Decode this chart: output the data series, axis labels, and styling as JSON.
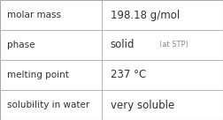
{
  "rows": [
    {
      "label": "molar mass",
      "value": "198.18 g/mol",
      "value_suffix": null
    },
    {
      "label": "phase",
      "value": "solid",
      "value_suffix": "(at STP)"
    },
    {
      "label": "melting point",
      "value": "237 °C",
      "value_suffix": null
    },
    {
      "label": "solubility in water",
      "value": "very soluble",
      "value_suffix": null
    }
  ],
  "col_split": 0.455,
  "background_color": "#ffffff",
  "border_color": "#aaaaaa",
  "text_color": "#303030",
  "label_fontsize": 7.5,
  "value_fontsize": 8.5,
  "suffix_fontsize": 6.0,
  "font_family": "DejaVu Sans"
}
